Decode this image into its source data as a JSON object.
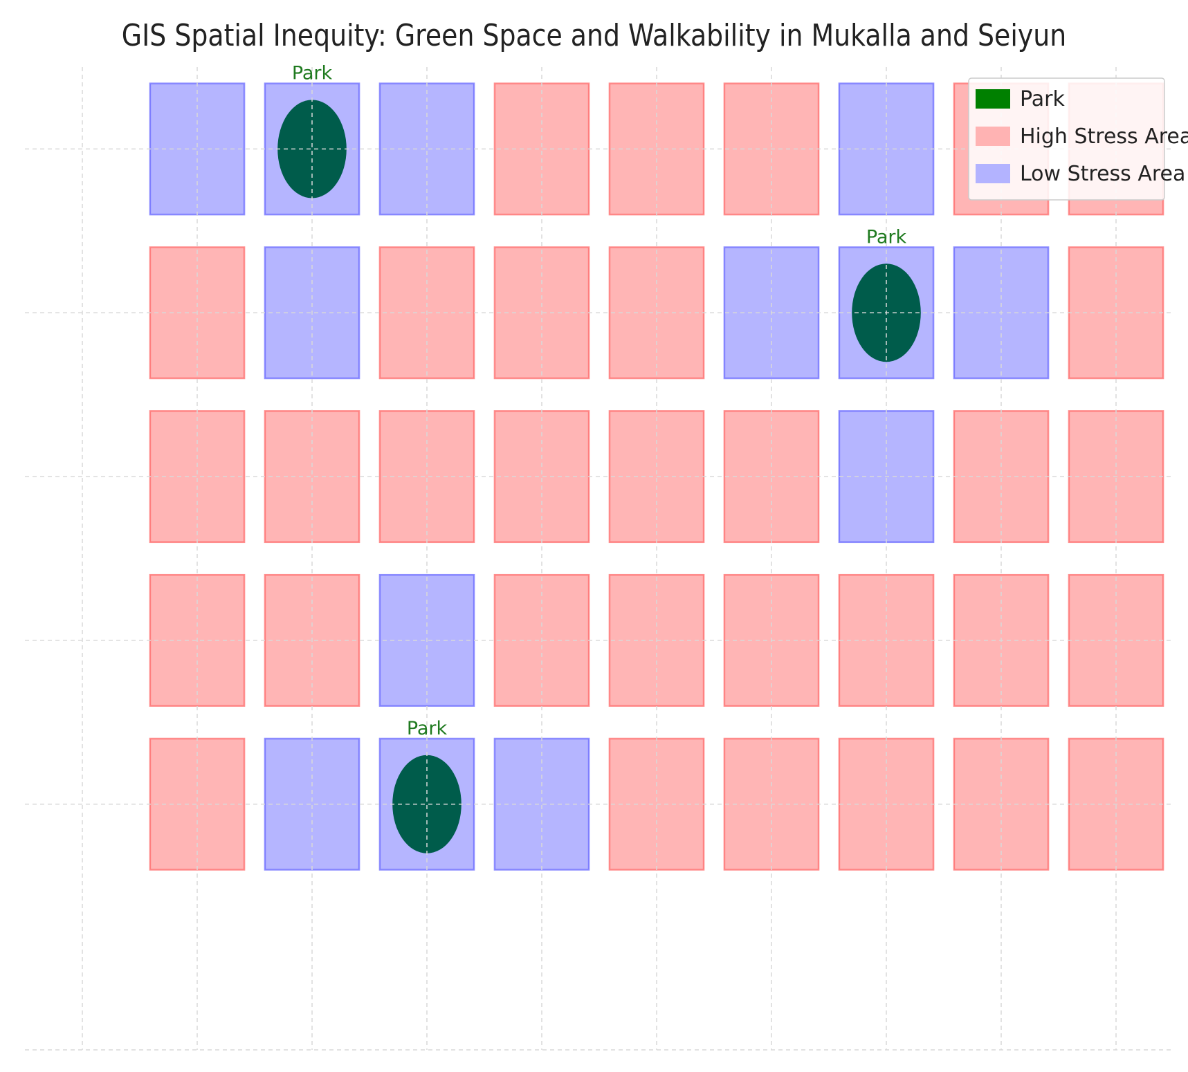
{
  "chart_data": {
    "type": "heatmap",
    "title": "GIS Spatial Inequity: Green Space and Walkability in Mukalla and Seiyun",
    "xlabel": "",
    "ylabel": "",
    "xlim": [
      -0.5,
      9.5
    ],
    "ylim": [
      -0.5,
      5.5
    ],
    "grid": true,
    "legend_position": "top-right",
    "legend": [
      {
        "label": "Park",
        "color": "#008000"
      },
      {
        "label": "High Stress Area",
        "color": "#ffb3b3"
      },
      {
        "label": "Low Stress Area",
        "color": "#b3b3ff"
      }
    ],
    "colors": {
      "high": "#ff6b6b",
      "low": "#6b6bff",
      "park": "#005c4b",
      "park_label": "#1f7a1f",
      "grid": "#d9d9d9"
    },
    "rows": [
      {
        "y": 5,
        "cells": [
          "low",
          "low",
          "low",
          "high",
          "high",
          "high",
          "low",
          "high",
          "high"
        ]
      },
      {
        "y": 4,
        "cells": [
          "high",
          "low",
          "high",
          "high",
          "high",
          "low",
          "low",
          "low",
          "high"
        ]
      },
      {
        "y": 3,
        "cells": [
          "high",
          "high",
          "high",
          "high",
          "high",
          "high",
          "low",
          "high",
          "high"
        ]
      },
      {
        "y": 2,
        "cells": [
          "high",
          "high",
          "low",
          "high",
          "high",
          "high",
          "high",
          "high",
          "high"
        ]
      },
      {
        "y": 1,
        "cells": [
          "high",
          "low",
          "low",
          "low",
          "high",
          "high",
          "high",
          "high",
          "high"
        ]
      }
    ],
    "parks": [
      {
        "x": 2,
        "y": 5,
        "label": "Park"
      },
      {
        "x": 7,
        "y": 4,
        "label": "Park"
      },
      {
        "x": 3,
        "y": 1,
        "label": "Park"
      }
    ]
  }
}
